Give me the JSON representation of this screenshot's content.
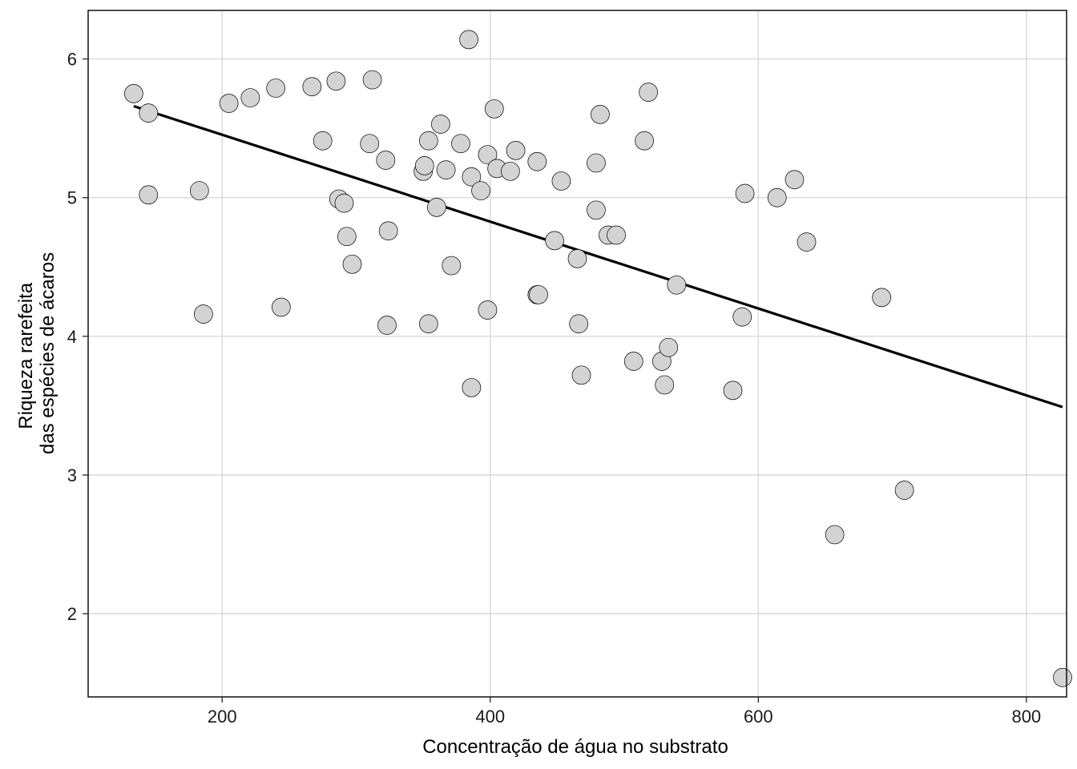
{
  "chart_data": {
    "type": "scatter",
    "xlabel": "Concentração de água no substrato",
    "ylabel_lines": [
      "Riqueza rarefeita",
      "das espécies de ácaros"
    ],
    "xlim": [
      100,
      830
    ],
    "ylim": [
      1.4,
      6.35
    ],
    "x_ticks": [
      200,
      400,
      600,
      800
    ],
    "y_ticks": [
      2,
      3,
      4,
      5,
      6
    ],
    "grid": true,
    "point_color": "#d3d3d3",
    "point_edge_color": "#000000",
    "line_color": "#000000",
    "trend_line": {
      "x": [
        134,
        827
      ],
      "y": [
        5.66,
        3.49
      ]
    },
    "points": [
      {
        "x": 134,
        "y": 5.75
      },
      {
        "x": 145,
        "y": 5.61
      },
      {
        "x": 145,
        "y": 5.02
      },
      {
        "x": 183,
        "y": 5.05
      },
      {
        "x": 186,
        "y": 4.16
      },
      {
        "x": 205,
        "y": 5.68
      },
      {
        "x": 221,
        "y": 5.72
      },
      {
        "x": 240,
        "y": 5.79
      },
      {
        "x": 244,
        "y": 4.21
      },
      {
        "x": 267,
        "y": 5.8
      },
      {
        "x": 275,
        "y": 5.41
      },
      {
        "x": 285,
        "y": 5.84
      },
      {
        "x": 287,
        "y": 4.99
      },
      {
        "x": 291,
        "y": 4.96
      },
      {
        "x": 293,
        "y": 4.72
      },
      {
        "x": 297,
        "y": 4.52
      },
      {
        "x": 310,
        "y": 5.39
      },
      {
        "x": 312,
        "y": 5.85
      },
      {
        "x": 322,
        "y": 5.27
      },
      {
        "x": 324,
        "y": 4.76
      },
      {
        "x": 323,
        "y": 4.08
      },
      {
        "x": 350,
        "y": 5.19
      },
      {
        "x": 351,
        "y": 5.23
      },
      {
        "x": 354,
        "y": 5.41
      },
      {
        "x": 354,
        "y": 4.09
      },
      {
        "x": 360,
        "y": 4.93
      },
      {
        "x": 363,
        "y": 5.53
      },
      {
        "x": 367,
        "y": 5.2
      },
      {
        "x": 371,
        "y": 4.51
      },
      {
        "x": 378,
        "y": 5.39
      },
      {
        "x": 384,
        "y": 6.14
      },
      {
        "x": 386,
        "y": 5.15
      },
      {
        "x": 386,
        "y": 3.63
      },
      {
        "x": 393,
        "y": 5.05
      },
      {
        "x": 398,
        "y": 5.31
      },
      {
        "x": 398,
        "y": 4.19
      },
      {
        "x": 403,
        "y": 5.64
      },
      {
        "x": 405,
        "y": 5.21
      },
      {
        "x": 415,
        "y": 5.19
      },
      {
        "x": 419,
        "y": 5.34
      },
      {
        "x": 435,
        "y": 5.26
      },
      {
        "x": 435,
        "y": 4.3
      },
      {
        "x": 436,
        "y": 4.3
      },
      {
        "x": 448,
        "y": 4.69
      },
      {
        "x": 453,
        "y": 5.12
      },
      {
        "x": 465,
        "y": 4.56
      },
      {
        "x": 466,
        "y": 4.09
      },
      {
        "x": 468,
        "y": 3.72
      },
      {
        "x": 479,
        "y": 5.25
      },
      {
        "x": 479,
        "y": 4.91
      },
      {
        "x": 482,
        "y": 5.6
      },
      {
        "x": 488,
        "y": 4.73
      },
      {
        "x": 494,
        "y": 4.73
      },
      {
        "x": 507,
        "y": 3.82
      },
      {
        "x": 515,
        "y": 5.41
      },
      {
        "x": 518,
        "y": 5.76
      },
      {
        "x": 528,
        "y": 3.82
      },
      {
        "x": 530,
        "y": 3.65
      },
      {
        "x": 533,
        "y": 3.92
      },
      {
        "x": 539,
        "y": 4.37
      },
      {
        "x": 581,
        "y": 3.61
      },
      {
        "x": 588,
        "y": 4.14
      },
      {
        "x": 590,
        "y": 5.03
      },
      {
        "x": 614,
        "y": 5.0
      },
      {
        "x": 627,
        "y": 5.13
      },
      {
        "x": 636,
        "y": 4.68
      },
      {
        "x": 657,
        "y": 2.57
      },
      {
        "x": 692,
        "y": 4.28
      },
      {
        "x": 709,
        "y": 2.89
      },
      {
        "x": 827,
        "y": 1.54
      }
    ]
  }
}
